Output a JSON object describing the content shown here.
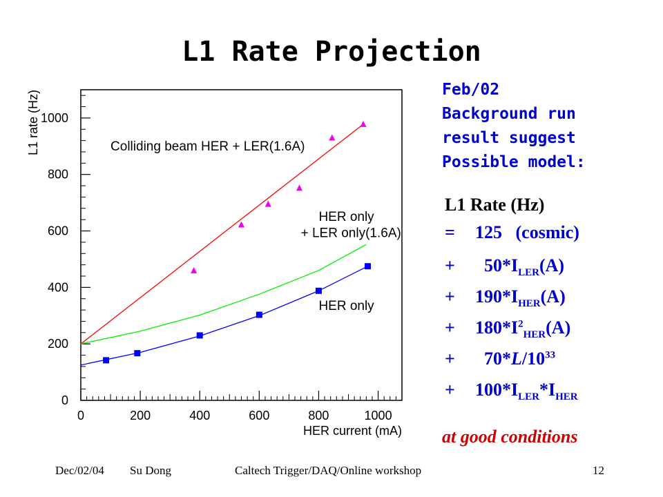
{
  "slide": {
    "title": "L1 Rate Projection",
    "note_lines": [
      "Feb/02",
      "Background run",
      "result suggest",
      "Possible model:"
    ],
    "model": {
      "header": "L1 Rate (Hz)",
      "l1": {
        "op": "=",
        "val": "125",
        "tail": "(cosmic)"
      },
      "l2": {
        "op": "+",
        "coef": "50*I",
        "sub": "LER",
        "tail": "(A)"
      },
      "l3": {
        "op": "+",
        "coef": "190*I",
        "sub": "HER",
        "tail": "(A)"
      },
      "l4": {
        "op": "+",
        "coef": "180*I",
        "sup": "2",
        "sub": "HER",
        "tail": "(A)"
      },
      "l5": {
        "op": "+",
        "coef": "70*",
        "script_l": "L",
        "div": "/10",
        "sup": "33"
      },
      "l6": {
        "op": "+",
        "coef": "100*I",
        "sub1": "LER",
        "mid": "*I",
        "sub2": "HER"
      }
    },
    "conditions": "at good conditions",
    "footer": {
      "date": "Dec/02/04",
      "author": "Su Dong",
      "event": "Caltech Trigger/DAQ/Online workshop",
      "page": "12"
    }
  },
  "colors": {
    "note": "#0000cc",
    "conditions": "#cc0000",
    "colliding": "#ff0000",
    "her_ler": "#00ee00",
    "her": "#0000ff",
    "marker_tri": "#ee00ee"
  },
  "chart_data": {
    "type": "scatter",
    "xlabel": "HER current (mA)",
    "ylabel": "L1 rate (Hz)",
    "xlim": [
      0,
      1080
    ],
    "ylim": [
      0,
      1100
    ],
    "xticks": [
      "0",
      "200",
      "400",
      "600",
      "800",
      "1000"
    ],
    "yticks": [
      "0",
      "200",
      "400",
      "600",
      "800",
      "1000"
    ],
    "annotations": {
      "colliding": "Colliding beam HER + LER(1.6A)",
      "her_only_top": "HER only",
      "ler_only": "+ LER only(1.6A)",
      "her_only_bottom": "HER only"
    },
    "series": [
      {
        "key": "colliding",
        "marker": "triangle",
        "points": [
          [
            380,
            460
          ],
          [
            540,
            622
          ],
          [
            630,
            695
          ],
          [
            735,
            752
          ],
          [
            845,
            930
          ],
          [
            950,
            978
          ]
        ],
        "fit": [
          [
            0,
            200
          ],
          [
            950,
            978
          ]
        ]
      },
      {
        "key": "her_ler",
        "marker": "none",
        "fit": [
          [
            0,
            200
          ],
          [
            200,
            245
          ],
          [
            400,
            302
          ],
          [
            600,
            376
          ],
          [
            800,
            460
          ],
          [
            960,
            552
          ]
        ]
      },
      {
        "key": "her",
        "marker": "square",
        "points": [
          [
            85,
            142
          ],
          [
            190,
            167
          ],
          [
            400,
            230
          ],
          [
            600,
            303
          ],
          [
            800,
            388
          ],
          [
            965,
            475
          ]
        ],
        "fit": [
          [
            0,
            125
          ],
          [
            200,
            170
          ],
          [
            400,
            228
          ],
          [
            600,
            300
          ],
          [
            800,
            388
          ],
          [
            965,
            475
          ]
        ]
      }
    ]
  }
}
